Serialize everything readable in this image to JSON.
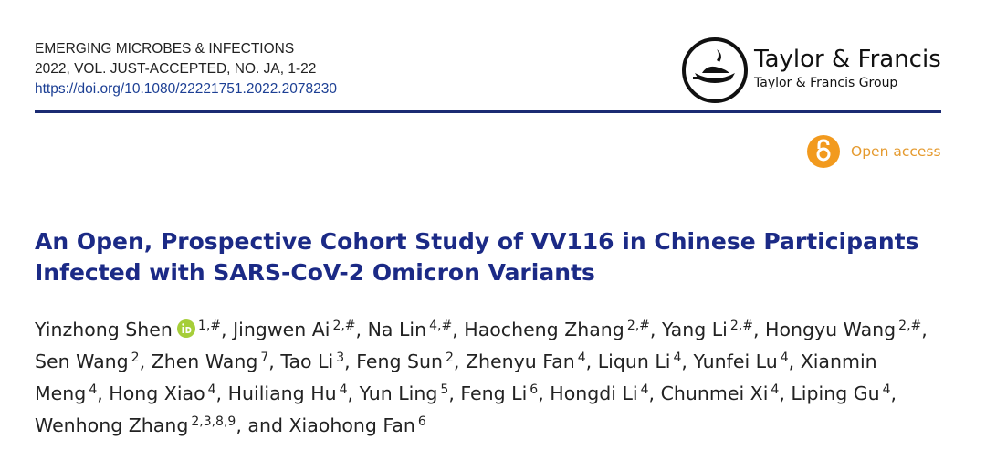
{
  "header": {
    "journal": "EMERGING MICROBES & INFECTIONS",
    "issue": "2022, VOL. JUST-ACCEPTED, NO. JA, 1-22",
    "doi": "https://doi.org/10.1080/22221751.2022.2078230",
    "publisher": "Taylor & Francis",
    "publisher_group": "Taylor & Francis Group",
    "access": "Open access"
  },
  "article": {
    "title": "An Open, Prospective Cohort Study of VV116 in Chinese Participants Infected with SARS-CoV-2 Omicron Variants",
    "authors": {
      "separator": ",",
      "conjunction": "and",
      "list": [
        {
          "name": "Yinzhong Shen",
          "sup": "1,#",
          "orcid": true
        },
        {
          "name": "Jingwen Ai",
          "sup": "2,#"
        },
        {
          "name": "Na Lin",
          "sup": "4,#"
        },
        {
          "name": "Haocheng Zhang",
          "sup": "2,#"
        },
        {
          "name": "Yang Li",
          "sup": "2,#"
        },
        {
          "name": "Hongyu Wang",
          "sup": "2,#"
        },
        {
          "name": "Sen Wang",
          "sup": "2"
        },
        {
          "name": "Zhen Wang",
          "sup": "7"
        },
        {
          "name": "Tao Li",
          "sup": "3"
        },
        {
          "name": "Feng Sun",
          "sup": "2"
        },
        {
          "name": "Zhenyu Fan",
          "sup": "4"
        },
        {
          "name": "Liqun Li",
          "sup": "4"
        },
        {
          "name": "Yunfei Lu",
          "sup": "4"
        },
        {
          "name": "Xianmin Meng",
          "sup": "4"
        },
        {
          "name": "Hong Xiao",
          "sup": "4"
        },
        {
          "name": "Huiliang Hu",
          "sup": "4"
        },
        {
          "name": "Yun Ling",
          "sup": "5"
        },
        {
          "name": "Feng Li",
          "sup": "6"
        },
        {
          "name": "Hongdi Li",
          "sup": "4"
        },
        {
          "name": "Chunmei Xi",
          "sup": "4"
        },
        {
          "name": "Liping Gu",
          "sup": "4"
        },
        {
          "name": "Wenhong Zhang",
          "sup": "2,3,8,9"
        },
        {
          "name": "Xiaohong Fan",
          "sup": "6"
        }
      ]
    }
  }
}
